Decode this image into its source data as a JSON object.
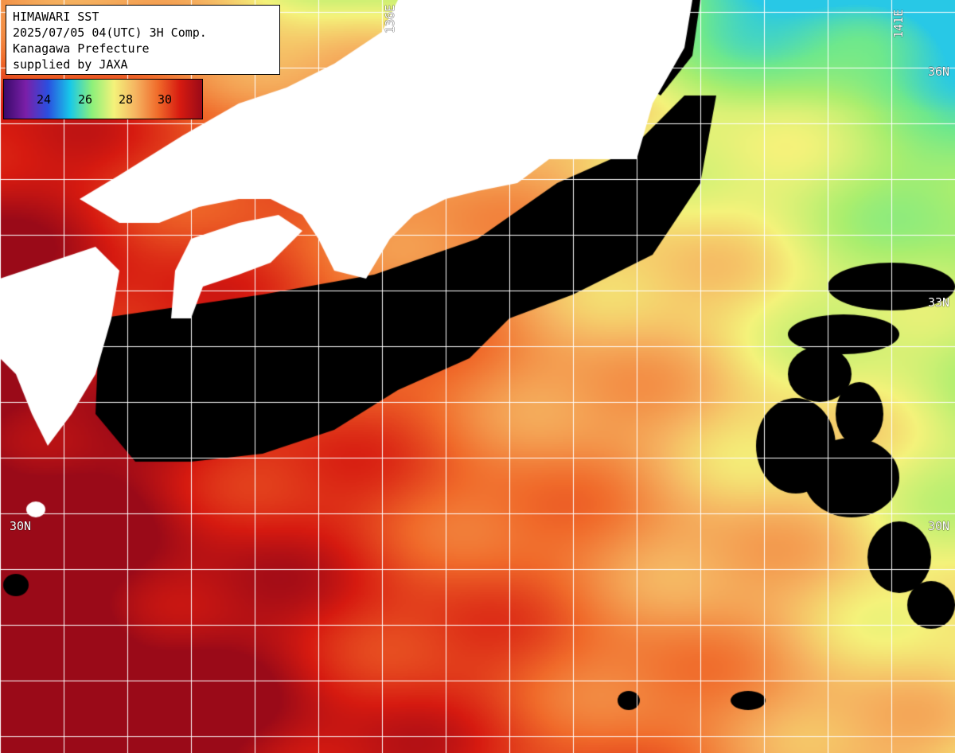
{
  "info": {
    "lines": [
      "HIMAWARI SST",
      "2025/07/05 04(UTC) 3H Comp.",
      "Kanagawa Prefecture",
      "supplied by JAXA"
    ]
  },
  "colorbar": {
    "ticks": [
      "24",
      "26",
      "28",
      "30"
    ],
    "colors": [
      "#3a0a6b",
      "#7a1fa8",
      "#2a4fe0",
      "#18c8e8",
      "#8df07a",
      "#f4f27a",
      "#f5b260",
      "#f06a2a",
      "#d61a10",
      "#9a0a18"
    ]
  },
  "grid_labels": {
    "lat_36_right": "36N",
    "lat_33_right": "33N",
    "lat_30_left": "30N",
    "lat_30_right": "30N",
    "lon_136": "136E",
    "lon_141": "141E"
  },
  "colors": {
    "land": "#ffffff",
    "cloud": "#000000",
    "grid": "#ffffff"
  }
}
